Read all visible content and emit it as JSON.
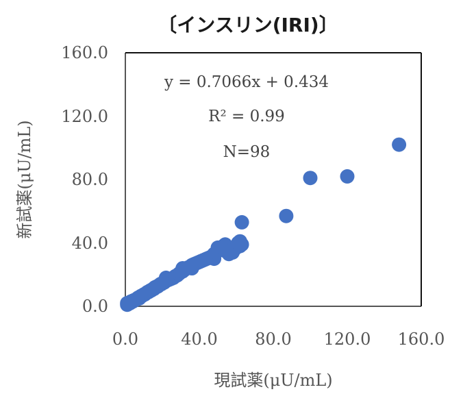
{
  "chart_data": {
    "type": "scatter",
    "title": "〔インスリン(IRI)〕",
    "xlabel": "現試薬(μU/mL)",
    "ylabel": "新試薬(μU/mL)",
    "xlim": [
      0,
      160
    ],
    "ylim": [
      0,
      160
    ],
    "xticks": [
      "0.0",
      "40.0",
      "80.0",
      "120.0",
      "160.0"
    ],
    "yticks": [
      "0.0",
      "40.0",
      "80.0",
      "120.0",
      "160.0"
    ],
    "grid": false,
    "marker_color": "#4472C4",
    "annotations": {
      "equation": "y = 0.7066x + 0.434",
      "r2": "R² = 0.99",
      "n": "N=98"
    },
    "points": [
      [
        1,
        1
      ],
      [
        1.5,
        1.5
      ],
      [
        2,
        2
      ],
      [
        2.5,
        2
      ],
      [
        3,
        2.5
      ],
      [
        3,
        3
      ],
      [
        3.5,
        3
      ],
      [
        4,
        3.5
      ],
      [
        4,
        3
      ],
      [
        4.5,
        3.5
      ],
      [
        5,
        4
      ],
      [
        5.5,
        4
      ],
      [
        6,
        4.5
      ],
      [
        6.5,
        5
      ],
      [
        7,
        5.5
      ],
      [
        7.5,
        5
      ],
      [
        8,
        6
      ],
      [
        8.5,
        6.5
      ],
      [
        9,
        6.5
      ],
      [
        9.5,
        7
      ],
      [
        10,
        7.5
      ],
      [
        10.5,
        7.5
      ],
      [
        11,
        8
      ],
      [
        11.5,
        8.5
      ],
      [
        12,
        9
      ],
      [
        12.5,
        9
      ],
      [
        13,
        9.5
      ],
      [
        13.5,
        10
      ],
      [
        14,
        10
      ],
      [
        14.5,
        10.5
      ],
      [
        15,
        11
      ],
      [
        15.5,
        11
      ],
      [
        16,
        12
      ],
      [
        16.5,
        12
      ],
      [
        17,
        12.5
      ],
      [
        17.5,
        12.5
      ],
      [
        18,
        13
      ],
      [
        18.5,
        13.5
      ],
      [
        19,
        14
      ],
      [
        19.5,
        14
      ],
      [
        20,
        14.5
      ],
      [
        20.5,
        15
      ],
      [
        21,
        15
      ],
      [
        22,
        16
      ],
      [
        22,
        18
      ],
      [
        23,
        16.5
      ],
      [
        24,
        17
      ],
      [
        25,
        17.5
      ],
      [
        26,
        18
      ],
      [
        27,
        19
      ],
      [
        28,
        19.5
      ],
      [
        29,
        20.5
      ],
      [
        30,
        21.5
      ],
      [
        31,
        22
      ],
      [
        31,
        24
      ],
      [
        32,
        23
      ],
      [
        33,
        24
      ],
      [
        34,
        24.5
      ],
      [
        35,
        25
      ],
      [
        36,
        24
      ],
      [
        36,
        26
      ],
      [
        37,
        26.5
      ],
      [
        38,
        27
      ],
      [
        39,
        27.5
      ],
      [
        40,
        28
      ],
      [
        41,
        28.5
      ],
      [
        42,
        29
      ],
      [
        43,
        29.5
      ],
      [
        44,
        30
      ],
      [
        45,
        30.5
      ],
      [
        46,
        31
      ],
      [
        47,
        31.5
      ],
      [
        48,
        30
      ],
      [
        48,
        33
      ],
      [
        49,
        34
      ],
      [
        50,
        35
      ],
      [
        50,
        37
      ],
      [
        51,
        36
      ],
      [
        52,
        37
      ],
      [
        53,
        38
      ],
      [
        54,
        39
      ],
      [
        54,
        35
      ],
      [
        55,
        36.5
      ],
      [
        56,
        33
      ],
      [
        57,
        35
      ],
      [
        58,
        34
      ],
      [
        59,
        36
      ],
      [
        60,
        37
      ],
      [
        61,
        40
      ],
      [
        62,
        41
      ],
      [
        62,
        38
      ],
      [
        63,
        39
      ],
      [
        63,
        53
      ],
      [
        87,
        57
      ],
      [
        100,
        81
      ],
      [
        120,
        82
      ],
      [
        148,
        102
      ],
      [
        1,
        2
      ]
    ]
  }
}
